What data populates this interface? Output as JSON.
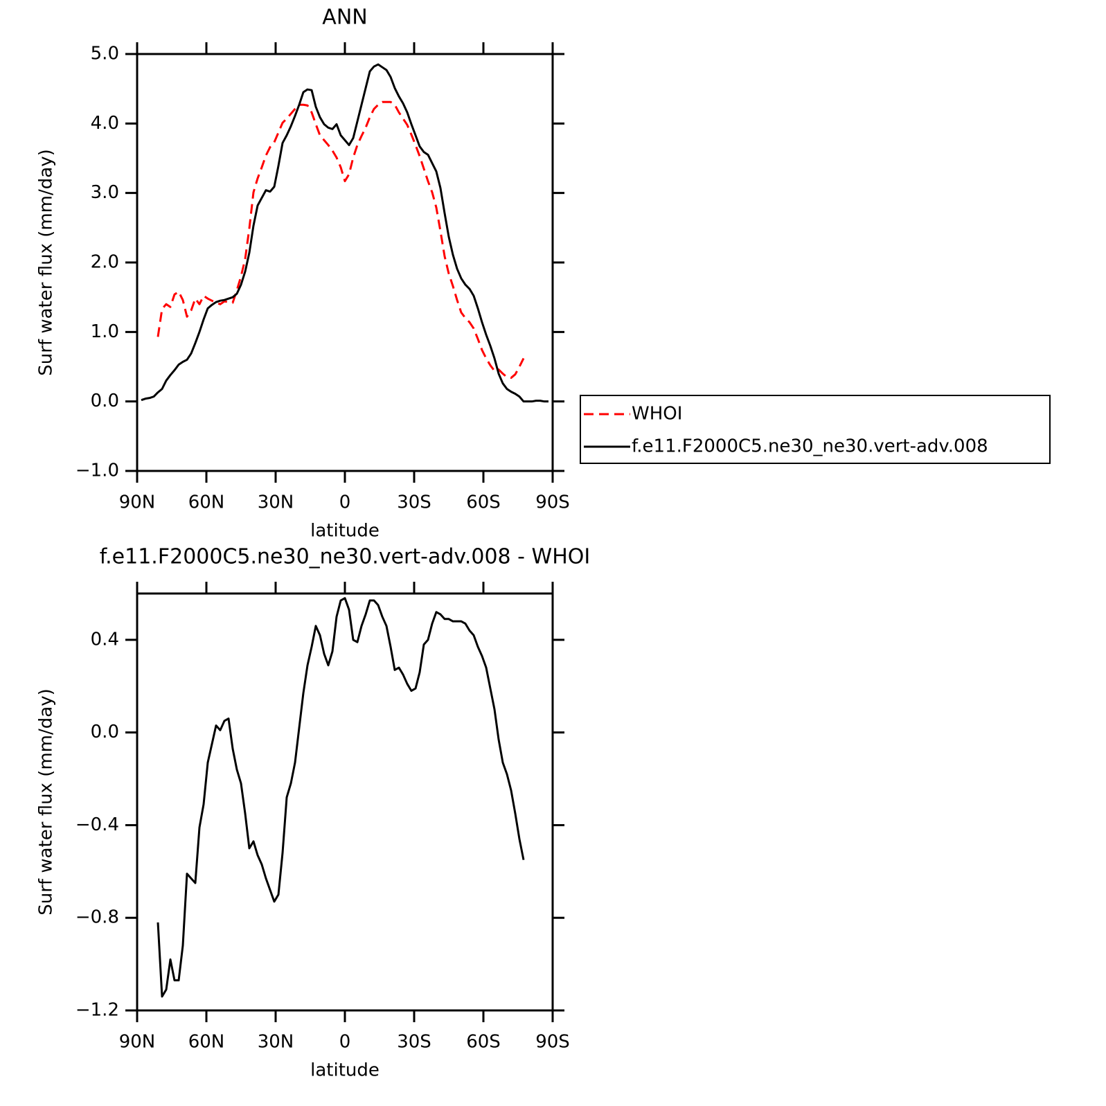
{
  "chart_data": [
    {
      "type": "line",
      "title": "ANN",
      "xlabel": "latitude",
      "ylabel": "Surf water flux (mm/day)",
      "x": [
        88.2,
        86.4,
        84.6,
        82.8,
        81,
        79.2,
        77.4,
        75.6,
        73.8,
        72,
        70.2,
        68.4,
        66.6,
        64.8,
        63,
        61.2,
        59.4,
        57.6,
        55.8,
        54,
        52.2,
        50.4,
        48.6,
        46.8,
        45,
        43.2,
        41.4,
        39.6,
        37.8,
        36,
        34.2,
        32.4,
        30.6,
        28.8,
        27,
        25.2,
        23.4,
        21.6,
        19.8,
        18,
        16.2,
        14.4,
        12.6,
        10.8,
        9,
        7.2,
        5.4,
        3.6,
        1.8,
        0,
        -1.8,
        -3.6,
        -5.4,
        -7.2,
        -9,
        -10.8,
        -12.6,
        -14.4,
        -16.2,
        -18,
        -19.8,
        -21.6,
        -23.4,
        -25.2,
        -27,
        -28.8,
        -30.6,
        -32.4,
        -34.2,
        -36,
        -37.8,
        -39.6,
        -41.4,
        -43.2,
        -45,
        -46.8,
        -48.6,
        -50.4,
        -52.2,
        -54,
        -55.8,
        -57.6,
        -59.4,
        -61.2,
        -63,
        -64.8,
        -66.6,
        -68.4,
        -70.2,
        -72,
        -73.8,
        -75.6,
        -77.4,
        -79.2,
        -81,
        -82.8,
        -84.6,
        -86.4,
        -88.2
      ],
      "series": [
        {
          "name": "WHOI",
          "color": "#ff0000",
          "style": "dashed",
          "values": [
            null,
            null,
            null,
            null,
            0.93,
            1.33,
            1.4,
            1.36,
            1.54,
            1.58,
            1.46,
            1.22,
            1.31,
            1.48,
            1.4,
            1.52,
            1.48,
            1.45,
            1.42,
            1.4,
            1.44,
            1.43,
            1.42,
            1.6,
            1.8,
            2.05,
            2.49,
            3.01,
            3.21,
            3.37,
            3.54,
            3.66,
            3.73,
            3.87,
            4.01,
            4.07,
            4.14,
            4.21,
            4.27,
            4.27,
            4.26,
            4.16,
            3.99,
            3.83,
            3.76,
            3.69,
            3.61,
            3.51,
            3.37,
            3.17,
            3.27,
            3.51,
            3.69,
            3.82,
            3.94,
            4.09,
            4.21,
            4.27,
            4.31,
            4.31,
            4.31,
            4.27,
            4.16,
            4.07,
            3.98,
            3.84,
            3.69,
            3.53,
            3.35,
            3.17,
            3.01,
            2.79,
            2.45,
            2.09,
            1.84,
            1.66,
            1.46,
            1.28,
            1.2,
            1.14,
            1.05,
            0.9,
            0.74,
            0.62,
            0.52,
            0.44,
            0.46,
            0.4,
            0.35,
            0.34,
            0.39,
            0.5,
            0.62,
            null,
            null,
            null,
            null,
            null,
            null
          ]
        },
        {
          "name": "f.e11.F2000C5.ne30_ne30.vert-adv.008",
          "color": "#000000",
          "style": "solid",
          "values": [
            0.02,
            0.04,
            0.05,
            0.07,
            0.13,
            0.18,
            0.3,
            0.38,
            0.45,
            0.53,
            0.57,
            0.6,
            0.69,
            0.84,
            1.0,
            1.18,
            1.34,
            1.39,
            1.43,
            1.45,
            1.46,
            1.48,
            1.5,
            1.55,
            1.68,
            1.87,
            2.14,
            2.53,
            2.82,
            2.93,
            3.04,
            3.02,
            3.09,
            3.39,
            3.72,
            3.83,
            3.96,
            4.11,
            4.27,
            4.45,
            4.49,
            4.48,
            4.24,
            4.09,
            3.99,
            3.94,
            3.92,
            3.99,
            3.83,
            3.76,
            3.69,
            3.79,
            4.03,
            4.27,
            4.51,
            4.75,
            4.82,
            4.85,
            4.81,
            4.77,
            4.67,
            4.51,
            4.39,
            4.29,
            4.16,
            3.99,
            3.83,
            3.67,
            3.59,
            3.55,
            3.43,
            3.31,
            3.07,
            2.71,
            2.37,
            2.11,
            1.91,
            1.77,
            1.68,
            1.62,
            1.52,
            1.34,
            1.14,
            0.96,
            0.8,
            0.62,
            0.4,
            0.26,
            0.18,
            0.14,
            0.11,
            0.07,
            0.0,
            0.0,
            0.0,
            0.01,
            0.01,
            0.0,
            0.0
          ]
        }
      ],
      "xlim": [
        90,
        -90
      ],
      "xticks": [
        {
          "value": 90,
          "label": "90N"
        },
        {
          "value": 60,
          "label": "60N"
        },
        {
          "value": 30,
          "label": "30N"
        },
        0,
        {
          "value": -30,
          "label": "30S"
        },
        {
          "value": -60,
          "label": "60S"
        },
        {
          "value": -90,
          "label": "90S"
        }
      ],
      "ylim": [
        -1.0,
        5.0
      ],
      "yticks": [
        {
          "value": -1,
          "label": "−1.0"
        },
        {
          "value": 0,
          "label": "0.0"
        },
        {
          "value": 1,
          "label": "1.0"
        },
        {
          "value": 2,
          "label": "2.0"
        },
        {
          "value": 3,
          "label": "3.0"
        },
        {
          "value": 4,
          "label": "4.0"
        },
        {
          "value": 5,
          "label": "5.0"
        }
      ],
      "legend": "right"
    },
    {
      "type": "line",
      "title": "f.e11.F2000C5.ne30_ne30.vert-adv.008 - WHOI",
      "xlabel": "latitude",
      "ylabel": "Surf water flux (mm/day)",
      "x": [
        81,
        79.2,
        77.4,
        75.6,
        73.8,
        72,
        70.2,
        68.4,
        66.6,
        64.8,
        63,
        61.2,
        59.4,
        57.6,
        55.8,
        54,
        52.2,
        50.4,
        48.6,
        46.8,
        45,
        43.2,
        41.4,
        39.6,
        37.8,
        36,
        34.2,
        32.4,
        30.6,
        28.8,
        27,
        25.2,
        23.4,
        21.6,
        19.8,
        18,
        16.2,
        14.4,
        12.6,
        10.8,
        9,
        7.2,
        5.4,
        3.6,
        1.8,
        0,
        -1.8,
        -3.6,
        -5.4,
        -7.2,
        -9,
        -10.8,
        -12.6,
        -14.4,
        -16.2,
        -18,
        -19.8,
        -21.6,
        -23.4,
        -25.2,
        -27,
        -28.8,
        -30.6,
        -32.4,
        -34.2,
        -36,
        -37.8,
        -39.6,
        -41.4,
        -43.2,
        -45,
        -46.8,
        -48.6,
        -50.4,
        -52.2,
        -54,
        -55.8,
        -57.6,
        -59.4,
        -61.2,
        -63,
        -64.8,
        -66.6,
        -68.4,
        -70.2,
        -72,
        -73.8,
        -75.6,
        -77.4
      ],
      "values": [
        -0.82,
        -1.14,
        -1.11,
        -0.98,
        -1.07,
        -1.07,
        -0.92,
        -0.61,
        -0.63,
        -0.65,
        -0.41,
        -0.31,
        -0.13,
        -0.05,
        0.03,
        0.01,
        0.05,
        0.06,
        -0.07,
        -0.16,
        -0.22,
        -0.35,
        -0.5,
        -0.47,
        -0.53,
        -0.57,
        -0.63,
        -0.68,
        -0.73,
        -0.7,
        -0.52,
        -0.28,
        -0.22,
        -0.13,
        0.02,
        0.17,
        0.29,
        0.37,
        0.46,
        0.42,
        0.34,
        0.29,
        0.35,
        0.5,
        0.57,
        0.58,
        0.53,
        0.4,
        0.39,
        0.46,
        0.51,
        0.57,
        0.57,
        0.55,
        0.5,
        0.46,
        0.37,
        0.27,
        0.28,
        0.25,
        0.21,
        0.18,
        0.19,
        0.26,
        0.38,
        0.4,
        0.47,
        0.52,
        0.51,
        0.49,
        0.49,
        0.48,
        0.48,
        0.48,
        0.47,
        0.44,
        0.42,
        0.37,
        0.33,
        0.28,
        0.19,
        0.1,
        -0.03,
        -0.13,
        -0.18,
        -0.25,
        -0.35,
        -0.46,
        -0.55
      ],
      "color": "#000000",
      "xlim": [
        90,
        -90
      ],
      "xticks": [
        {
          "value": 90,
          "label": "90N"
        },
        {
          "value": 60,
          "label": "60N"
        },
        {
          "value": 30,
          "label": "30N"
        },
        0,
        {
          "value": -30,
          "label": "30S"
        },
        {
          "value": -60,
          "label": "60S"
        },
        {
          "value": -90,
          "label": "90S"
        }
      ],
      "ylim": [
        -1.2,
        0.6
      ],
      "yticks": [
        {
          "value": -1.2,
          "label": "−1.2"
        },
        {
          "value": -0.8,
          "label": "−0.8"
        },
        {
          "value": -0.4,
          "label": "−0.4"
        },
        {
          "value": 0,
          "label": "0.0"
        },
        {
          "value": 0.4,
          "label": "0.4"
        }
      ]
    }
  ]
}
